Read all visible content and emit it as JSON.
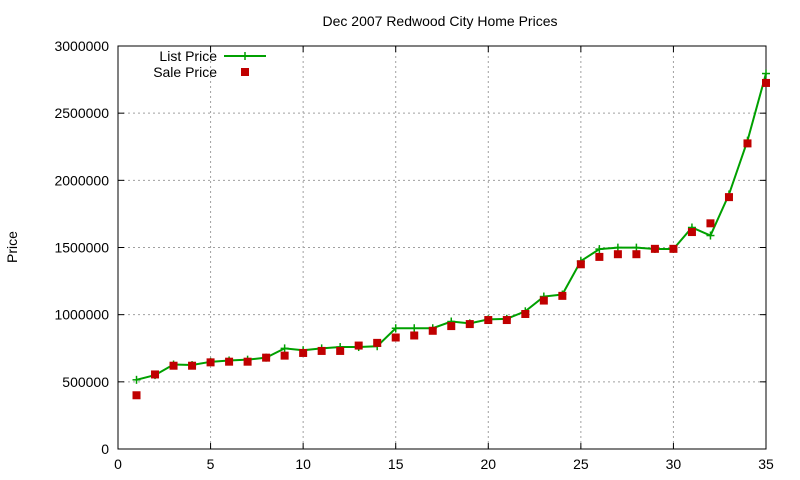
{
  "chart_data": {
    "type": "line",
    "title": "Dec 2007 Redwood City Home Prices",
    "xlabel": "",
    "ylabel": "Price",
    "xlim": [
      0,
      35
    ],
    "ylim": [
      0,
      3000000
    ],
    "xticks": [
      0,
      5,
      10,
      15,
      20,
      25,
      30,
      35
    ],
    "yticks": [
      0,
      500000,
      1000000,
      1500000,
      2000000,
      2500000,
      3000000
    ],
    "grid": true,
    "legend_position": "top-left",
    "x": [
      1,
      2,
      3,
      4,
      5,
      6,
      7,
      8,
      9,
      10,
      11,
      12,
      13,
      14,
      15,
      16,
      17,
      18,
      19,
      20,
      21,
      22,
      23,
      24,
      25,
      26,
      27,
      28,
      29,
      30,
      31,
      32,
      33,
      34,
      35
    ],
    "series": [
      {
        "name": "List Price",
        "style": "lines+points",
        "color": "#00a000",
        "values": [
          515000,
          550000,
          629000,
          625000,
          649000,
          659000,
          665000,
          680000,
          749000,
          735000,
          749000,
          759000,
          759000,
          765000,
          899000,
          899000,
          899000,
          949000,
          935000,
          965000,
          969000,
          1025000,
          1135000,
          1150000,
          1399000,
          1488000,
          1499000,
          1499000,
          1489000,
          1489000,
          1649000,
          1589000,
          1895000,
          2295000,
          2795000
        ]
      },
      {
        "name": "Sale Price",
        "style": "points",
        "color": "#c00000",
        "values": [
          400000,
          555000,
          620000,
          620000,
          645000,
          650000,
          650000,
          680000,
          695000,
          715000,
          730000,
          730000,
          770000,
          790000,
          830000,
          845000,
          880000,
          915000,
          930000,
          960000,
          960000,
          1005000,
          1105000,
          1140000,
          1375000,
          1430000,
          1450000,
          1450000,
          1490000,
          1490000,
          1615000,
          1680000,
          1875000,
          2275000,
          2725000
        ]
      }
    ]
  }
}
